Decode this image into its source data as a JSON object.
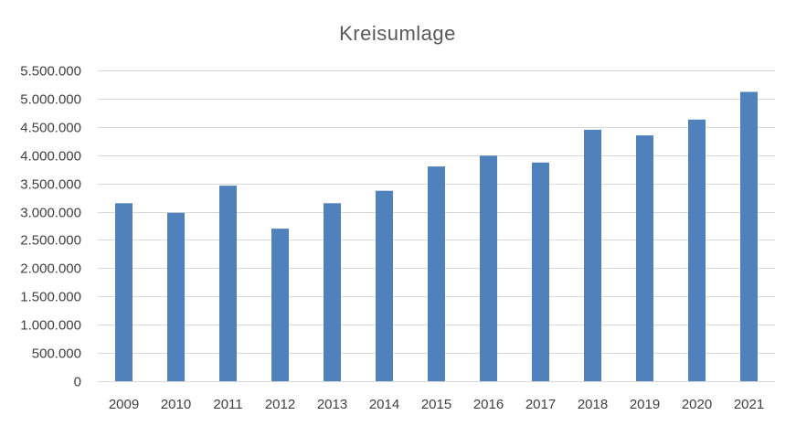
{
  "chart_data": {
    "type": "bar",
    "title": "Kreisumlage",
    "xlabel": "",
    "ylabel": "",
    "categories": [
      "2009",
      "2010",
      "2011",
      "2012",
      "2013",
      "2014",
      "2015",
      "2016",
      "2017",
      "2018",
      "2019",
      "2020",
      "2021"
    ],
    "series": [
      {
        "values": [
          3150000,
          2980000,
          3460000,
          2700000,
          3150000,
          3370000,
          3800000,
          3990000,
          3870000,
          4450000,
          4350000,
          4630000,
          5120000
        ],
        "color": "#4f81bd"
      }
    ],
    "ylim": [
      0,
      5500000
    ],
    "yticks": [
      0,
      500000,
      1000000,
      1500000,
      2000000,
      2500000,
      3000000,
      3500000,
      4000000,
      4500000,
      5000000,
      5500000
    ],
    "ytick_labels": [
      "0",
      "500.000",
      "1.000.000",
      "1.500.000",
      "2.000.000",
      "2.500.000",
      "3.000.000",
      "3.500.000",
      "4.000.000",
      "4.500.000",
      "5.000.000",
      "5.500.000"
    ],
    "grid": true,
    "legend": "none"
  }
}
